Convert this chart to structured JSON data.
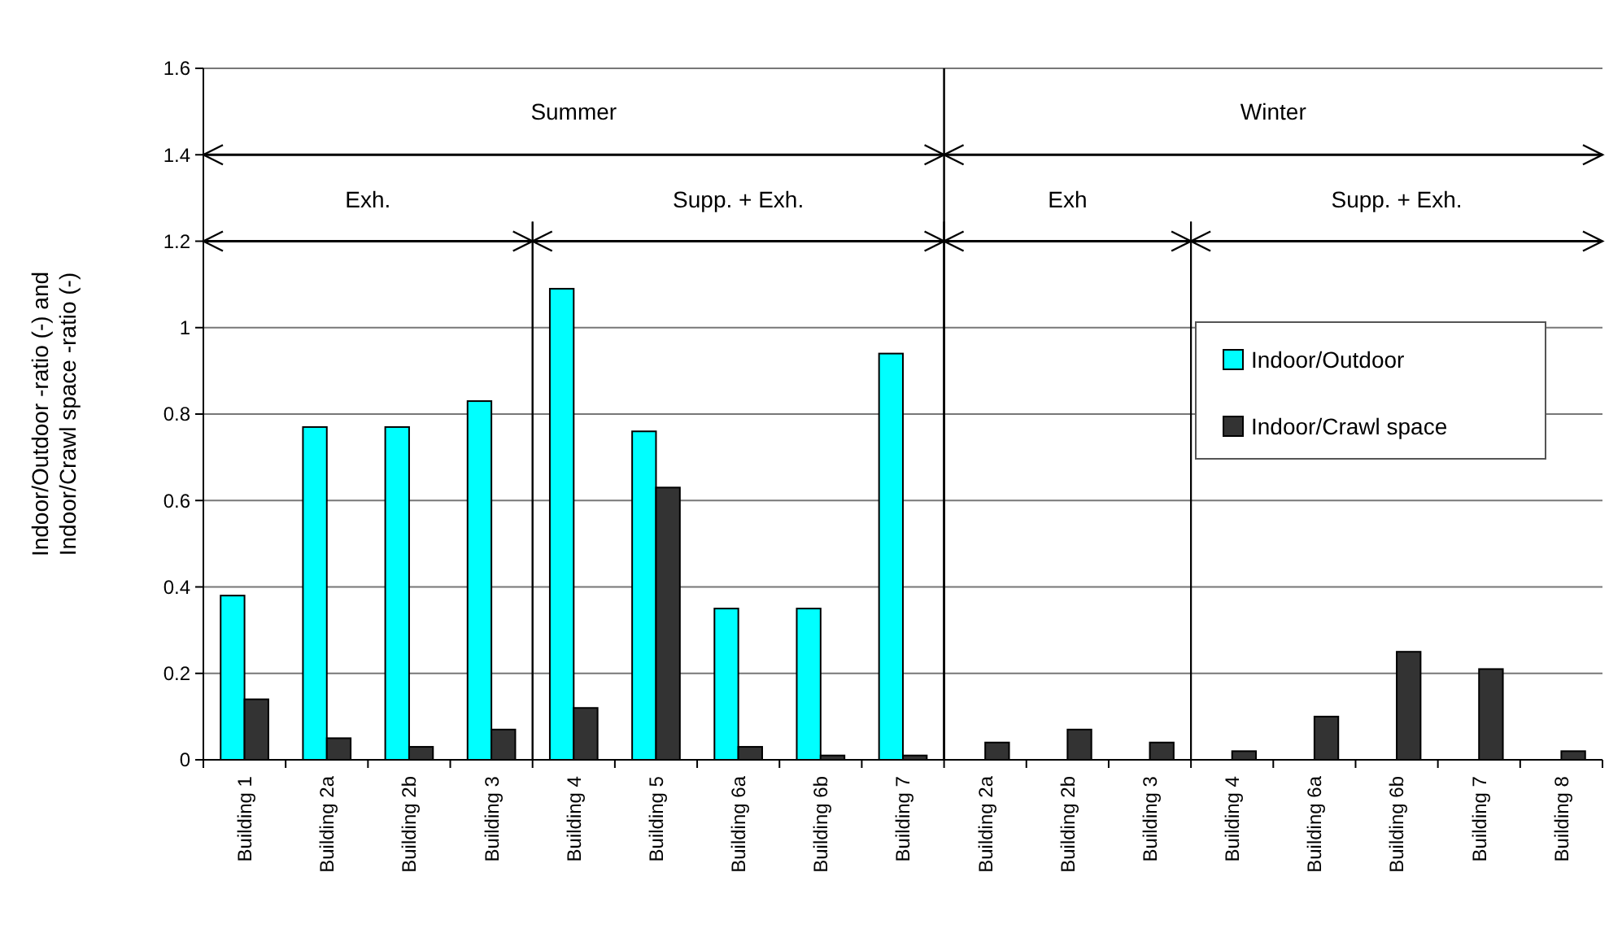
{
  "chart_data": {
    "type": "bar",
    "ylabel": "Indoor/Outdoor -ratio (-) and Indoor/Crawl space -ratio (-)",
    "categories": [
      "Building 1",
      "Building 2a",
      "Building 2b",
      "Building 3",
      "Building 4",
      "Building 5",
      "Building 6a",
      "Building 6b",
      "Building 7",
      "Building 2a",
      "Building 2b",
      "Building 3",
      "Building 4",
      "Building 6a",
      "Building 6b",
      "Building 7",
      "Building 8"
    ],
    "series": [
      {
        "name": "Indoor/Outdoor",
        "color": "#00ffff",
        "values": [
          0.38,
          0.77,
          0.77,
          0.83,
          1.09,
          0.76,
          0.35,
          0.35,
          0.94,
          null,
          null,
          null,
          null,
          null,
          null,
          null,
          null
        ]
      },
      {
        "name": "Indoor/Crawl space",
        "color": "#333333",
        "values": [
          0.14,
          0.05,
          0.03,
          0.07,
          0.12,
          0.63,
          0.03,
          0.01,
          0.01,
          0.04,
          0.07,
          0.04,
          0.02,
          0.1,
          0.25,
          0.21,
          0.02
        ]
      }
    ],
    "ylim": [
      0,
      1.6
    ],
    "yticks": [
      0,
      0.2,
      0.4,
      0.6,
      0.8,
      1,
      1.2,
      1.4,
      1.6
    ],
    "grid": "y",
    "legend": "right",
    "annotations": [
      "Summer",
      "Exh.",
      "Supp. + Exh.",
      "Winter",
      "Exh",
      "Supp. + Exh."
    ]
  }
}
